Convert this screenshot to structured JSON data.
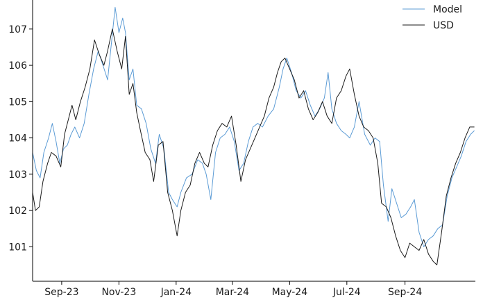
{
  "chart_data": {
    "type": "line",
    "title": "",
    "xlabel": "",
    "ylabel": "",
    "x_ticks": [
      "Sep-23",
      "Nov-23",
      "Jan-24",
      "Mar-24",
      "May-24",
      "Jul-24",
      "Sep-24"
    ],
    "x_range": [
      "2023-08-01",
      "2024-11-15"
    ],
    "y_ticks": [
      101,
      102,
      103,
      104,
      105,
      106,
      107
    ],
    "ylim": [
      100.05,
      107.8
    ],
    "grid": false,
    "legend_position": "top-right",
    "series": [
      {
        "name": "Model",
        "color": "#5b9bd5",
        "points": [
          [
            "2023-08-01",
            103.6
          ],
          [
            "2023-08-05",
            103.1
          ],
          [
            "2023-08-09",
            102.9
          ],
          [
            "2023-08-13",
            103.6
          ],
          [
            "2023-08-18",
            104.0
          ],
          [
            "2023-08-22",
            104.4
          ],
          [
            "2023-08-26",
            103.9
          ],
          [
            "2023-08-30",
            103.3
          ],
          [
            "2023-09-03",
            103.7
          ],
          [
            "2023-09-07",
            103.8
          ],
          [
            "2023-09-11",
            104.1
          ],
          [
            "2023-09-15",
            104.3
          ],
          [
            "2023-09-20",
            104.0
          ],
          [
            "2023-09-25",
            104.4
          ],
          [
            "2023-09-30",
            105.2
          ],
          [
            "2023-10-05",
            105.9
          ],
          [
            "2023-10-10",
            106.4
          ],
          [
            "2023-10-15",
            106.0
          ],
          [
            "2023-10-20",
            105.6
          ],
          [
            "2023-10-24",
            106.6
          ],
          [
            "2023-10-28",
            107.6
          ],
          [
            "2023-11-01",
            106.9
          ],
          [
            "2023-11-05",
            107.3
          ],
          [
            "2023-11-08",
            106.9
          ],
          [
            "2023-11-12",
            105.6
          ],
          [
            "2023-11-16",
            105.9
          ],
          [
            "2023-11-20",
            104.9
          ],
          [
            "2023-11-25",
            104.8
          ],
          [
            "2023-11-30",
            104.4
          ],
          [
            "2023-12-05",
            103.7
          ],
          [
            "2023-12-10",
            103.3
          ],
          [
            "2023-12-14",
            104.1
          ],
          [
            "2023-12-19",
            103.7
          ],
          [
            "2023-12-24",
            102.5
          ],
          [
            "2023-12-28",
            102.3
          ],
          [
            "2024-01-02",
            102.1
          ],
          [
            "2024-01-06",
            102.5
          ],
          [
            "2024-01-12",
            102.9
          ],
          [
            "2024-01-18",
            103.0
          ],
          [
            "2024-01-24",
            103.4
          ],
          [
            "2024-01-29",
            103.3
          ],
          [
            "2024-02-02",
            103.0
          ],
          [
            "2024-02-07",
            102.3
          ],
          [
            "2024-02-12",
            103.6
          ],
          [
            "2024-02-17",
            104.0
          ],
          [
            "2024-02-22",
            104.1
          ],
          [
            "2024-02-27",
            104.3
          ],
          [
            "2024-03-03",
            103.9
          ],
          [
            "2024-03-08",
            103.1
          ],
          [
            "2024-03-13",
            103.3
          ],
          [
            "2024-03-18",
            103.9
          ],
          [
            "2024-03-23",
            104.3
          ],
          [
            "2024-03-28",
            104.4
          ],
          [
            "2024-04-02",
            104.3
          ],
          [
            "2024-04-08",
            104.6
          ],
          [
            "2024-04-14",
            104.8
          ],
          [
            "2024-04-20",
            105.4
          ],
          [
            "2024-04-24",
            105.9
          ],
          [
            "2024-04-28",
            106.2
          ],
          [
            "2024-05-03",
            105.8
          ],
          [
            "2024-05-08",
            105.3
          ],
          [
            "2024-05-13",
            105.1
          ],
          [
            "2024-05-18",
            105.3
          ],
          [
            "2024-05-23",
            104.9
          ],
          [
            "2024-05-28",
            104.6
          ],
          [
            "2024-06-02",
            104.8
          ],
          [
            "2024-06-07",
            105.1
          ],
          [
            "2024-06-11",
            105.8
          ],
          [
            "2024-06-15",
            104.8
          ],
          [
            "2024-06-20",
            104.4
          ],
          [
            "2024-06-25",
            104.2
          ],
          [
            "2024-06-30",
            104.1
          ],
          [
            "2024-07-04",
            104.0
          ],
          [
            "2024-07-09",
            104.3
          ],
          [
            "2024-07-14",
            105.0
          ],
          [
            "2024-07-20",
            104.1
          ],
          [
            "2024-07-26",
            103.8
          ],
          [
            "2024-07-31",
            104.0
          ],
          [
            "2024-08-05",
            103.9
          ],
          [
            "2024-08-09",
            102.7
          ],
          [
            "2024-08-14",
            101.7
          ],
          [
            "2024-08-18",
            102.6
          ],
          [
            "2024-08-23",
            102.2
          ],
          [
            "2024-08-28",
            101.8
          ],
          [
            "2024-09-02",
            101.9
          ],
          [
            "2024-09-07",
            102.1
          ],
          [
            "2024-09-11",
            102.3
          ],
          [
            "2024-09-16",
            101.4
          ],
          [
            "2024-09-21",
            101.0
          ],
          [
            "2024-09-26",
            101.2
          ],
          [
            "2024-10-01",
            101.3
          ],
          [
            "2024-10-06",
            101.5
          ],
          [
            "2024-10-11",
            101.6
          ],
          [
            "2024-10-16",
            102.4
          ],
          [
            "2024-10-21",
            102.9
          ],
          [
            "2024-10-26",
            103.2
          ],
          [
            "2024-10-31",
            103.5
          ],
          [
            "2024-11-05",
            103.9
          ],
          [
            "2024-11-10",
            104.1
          ],
          [
            "2024-11-14",
            104.2
          ]
        ]
      },
      {
        "name": "USD",
        "color": "#1a1a1a",
        "points": [
          [
            "2023-08-01",
            102.5
          ],
          [
            "2023-08-04",
            102.0
          ],
          [
            "2023-08-08",
            102.1
          ],
          [
            "2023-08-12",
            102.8
          ],
          [
            "2023-08-17",
            103.3
          ],
          [
            "2023-08-21",
            103.6
          ],
          [
            "2023-08-26",
            103.5
          ],
          [
            "2023-08-31",
            103.2
          ],
          [
            "2023-09-04",
            104.1
          ],
          [
            "2023-09-08",
            104.5
          ],
          [
            "2023-09-12",
            104.9
          ],
          [
            "2023-09-16",
            104.5
          ],
          [
            "2023-09-21",
            105.0
          ],
          [
            "2023-09-26",
            105.4
          ],
          [
            "2023-10-01",
            105.9
          ],
          [
            "2023-10-06",
            106.7
          ],
          [
            "2023-10-11",
            106.3
          ],
          [
            "2023-10-16",
            106.0
          ],
          [
            "2023-10-20",
            106.4
          ],
          [
            "2023-10-25",
            107.0
          ],
          [
            "2023-10-30",
            106.4
          ],
          [
            "2023-11-04",
            105.9
          ],
          [
            "2023-11-08",
            106.8
          ],
          [
            "2023-11-12",
            105.2
          ],
          [
            "2023-11-16",
            105.5
          ],
          [
            "2023-11-20",
            104.7
          ],
          [
            "2023-11-24",
            104.2
          ],
          [
            "2023-11-29",
            103.6
          ],
          [
            "2023-12-04",
            103.4
          ],
          [
            "2023-12-08",
            102.8
          ],
          [
            "2023-12-13",
            103.8
          ],
          [
            "2023-12-18",
            103.9
          ],
          [
            "2023-12-23",
            102.5
          ],
          [
            "2023-12-28",
            102.0
          ],
          [
            "2024-01-02",
            101.3
          ],
          [
            "2024-01-06",
            102.0
          ],
          [
            "2024-01-11",
            102.5
          ],
          [
            "2024-01-16",
            102.7
          ],
          [
            "2024-01-21",
            103.3
          ],
          [
            "2024-01-26",
            103.6
          ],
          [
            "2024-01-31",
            103.3
          ],
          [
            "2024-02-04",
            103.2
          ],
          [
            "2024-02-09",
            103.8
          ],
          [
            "2024-02-14",
            104.2
          ],
          [
            "2024-02-19",
            104.4
          ],
          [
            "2024-02-24",
            104.3
          ],
          [
            "2024-02-29",
            104.6
          ],
          [
            "2024-03-05",
            103.8
          ],
          [
            "2024-03-10",
            102.8
          ],
          [
            "2024-03-15",
            103.4
          ],
          [
            "2024-03-20",
            103.7
          ],
          [
            "2024-03-25",
            104.0
          ],
          [
            "2024-03-30",
            104.3
          ],
          [
            "2024-04-04",
            104.6
          ],
          [
            "2024-04-09",
            105.1
          ],
          [
            "2024-04-14",
            105.4
          ],
          [
            "2024-04-18",
            105.8
          ],
          [
            "2024-04-22",
            106.1
          ],
          [
            "2024-04-26",
            106.2
          ],
          [
            "2024-05-01",
            105.9
          ],
          [
            "2024-05-06",
            105.6
          ],
          [
            "2024-05-11",
            105.1
          ],
          [
            "2024-05-16",
            105.3
          ],
          [
            "2024-05-21",
            104.8
          ],
          [
            "2024-05-26",
            104.5
          ],
          [
            "2024-05-31",
            104.7
          ],
          [
            "2024-06-05",
            105.0
          ],
          [
            "2024-06-10",
            104.6
          ],
          [
            "2024-06-15",
            104.4
          ],
          [
            "2024-06-20",
            105.1
          ],
          [
            "2024-06-25",
            105.3
          ],
          [
            "2024-06-30",
            105.7
          ],
          [
            "2024-07-04",
            105.9
          ],
          [
            "2024-07-09",
            105.2
          ],
          [
            "2024-07-14",
            104.6
          ],
          [
            "2024-07-19",
            104.3
          ],
          [
            "2024-07-24",
            104.2
          ],
          [
            "2024-07-29",
            104.0
          ],
          [
            "2024-08-03",
            103.3
          ],
          [
            "2024-08-07",
            102.2
          ],
          [
            "2024-08-12",
            102.1
          ],
          [
            "2024-08-17",
            101.8
          ],
          [
            "2024-08-22",
            101.3
          ],
          [
            "2024-08-27",
            100.9
          ],
          [
            "2024-09-01",
            100.7
          ],
          [
            "2024-09-06",
            101.1
          ],
          [
            "2024-09-11",
            101.0
          ],
          [
            "2024-09-16",
            100.9
          ],
          [
            "2024-09-21",
            101.2
          ],
          [
            "2024-09-26",
            100.8
          ],
          [
            "2024-10-01",
            100.6
          ],
          [
            "2024-10-05",
            100.5
          ],
          [
            "2024-10-10",
            101.4
          ],
          [
            "2024-10-15",
            102.4
          ],
          [
            "2024-10-20",
            102.9
          ],
          [
            "2024-10-25",
            103.3
          ],
          [
            "2024-10-30",
            103.6
          ],
          [
            "2024-11-04",
            104.0
          ],
          [
            "2024-11-09",
            104.3
          ],
          [
            "2024-11-14",
            104.3
          ]
        ]
      }
    ]
  }
}
